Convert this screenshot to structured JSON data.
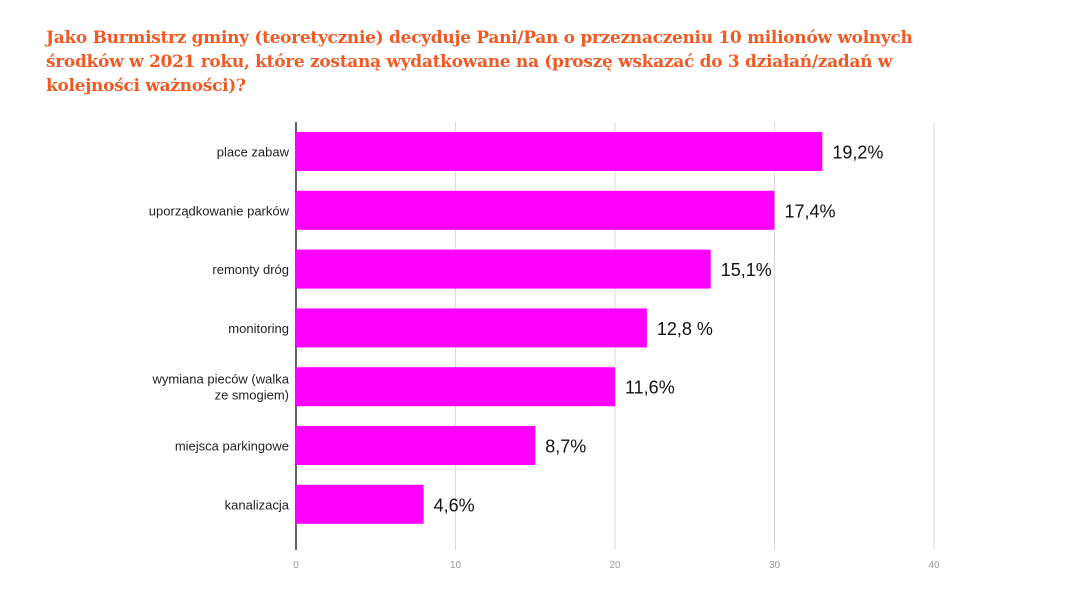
{
  "title_lines": [
    "Jako Burmistrz gminy (teoretycznie) decyduje Pani/Pan o przeznaczeniu 10 milionów wolnych",
    "środków w 2021 roku, które zostaną wydatkowane na (proszę wskazać do 3 działań/zadań w",
    "kolejności ważności)?"
  ],
  "colors": {
    "bar": "#ff00ff",
    "title": "#f15a24",
    "grid": "#d9d9d9",
    "axis": "#333333"
  },
  "chart_data": {
    "type": "bar",
    "orientation": "horizontal",
    "title": "Jako Burmistrz gminy (teoretycznie) decyduje Pani/Pan o przeznaczeniu 10 milionów wolnych środków w 2021 roku, które zostaną wydatkowane na (proszę wskazać do 3 działań/zadań w kolejności ważności)?",
    "categories": [
      [
        "place zabaw"
      ],
      [
        "uporządkowanie parków"
      ],
      [
        "remonty dróg"
      ],
      [
        "monitoring"
      ],
      [
        "wymiana pieców (walka",
        "ze smogiem)"
      ],
      [
        "miejsca parkingowe"
      ],
      [
        "kanalizacja"
      ]
    ],
    "values": [
      33,
      30,
      26,
      22,
      20,
      15,
      8
    ],
    "value_labels": [
      "19,2%",
      "17,4%",
      "15,1%",
      "12,8 %",
      "11,6%",
      "8,7%",
      "4,6%"
    ],
    "x_ticks": [
      "0",
      "10",
      "20",
      "30",
      "40"
    ],
    "xlim": [
      0,
      40
    ],
    "grid": true,
    "legend": "none"
  }
}
